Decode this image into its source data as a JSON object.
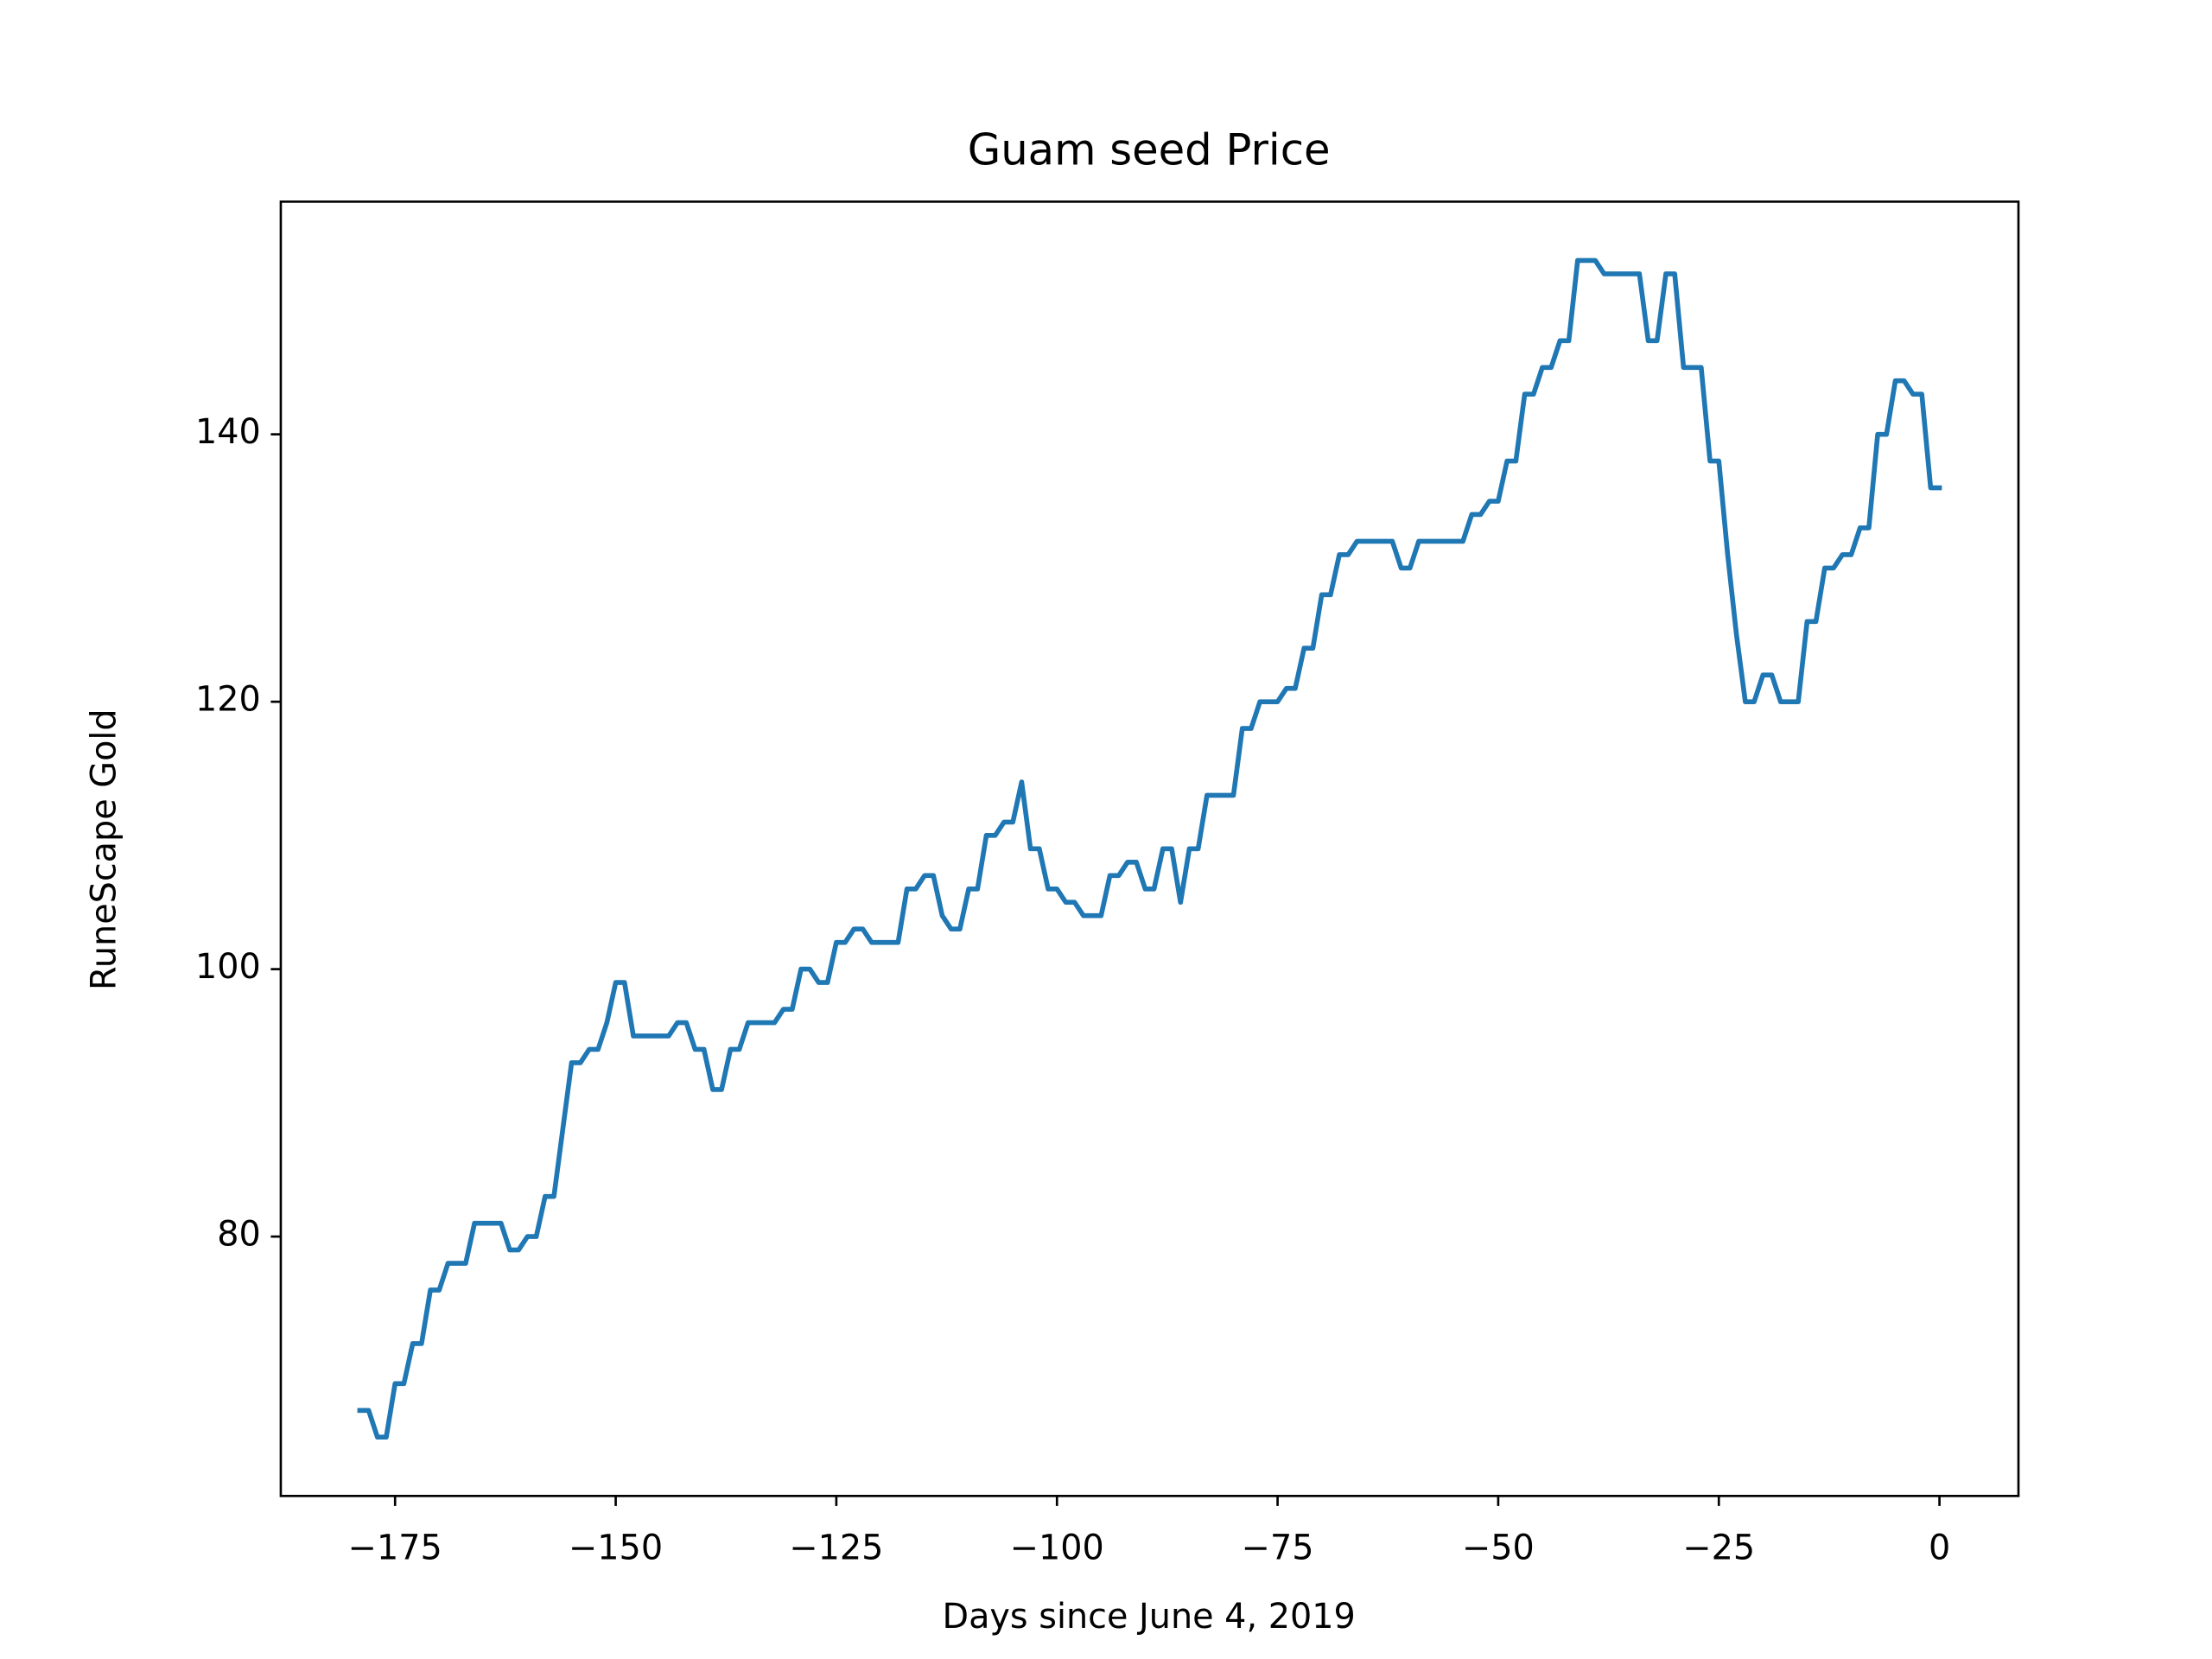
{
  "chart_data": {
    "type": "line",
    "title": "Guam seed Price",
    "xlabel": "Days since June 4, 2019",
    "ylabel": "RuneScape Gold",
    "x": [
      -179,
      -178,
      -177,
      -176,
      -175,
      -174,
      -173,
      -172,
      -171,
      -170,
      -169,
      -168,
      -167,
      -166,
      -165,
      -164,
      -163,
      -162,
      -161,
      -160,
      -159,
      -158,
      -157,
      -156,
      -155,
      -154,
      -153,
      -152,
      -151,
      -150,
      -149,
      -148,
      -147,
      -146,
      -145,
      -144,
      -143,
      -142,
      -141,
      -140,
      -139,
      -138,
      -137,
      -136,
      -135,
      -134,
      -133,
      -132,
      -131,
      -130,
      -129,
      -128,
      -127,
      -126,
      -125,
      -124,
      -123,
      -122,
      -121,
      -120,
      -119,
      -118,
      -117,
      -116,
      -115,
      -114,
      -113,
      -112,
      -111,
      -110,
      -109,
      -108,
      -107,
      -106,
      -105,
      -104,
      -103,
      -102,
      -101,
      -100,
      -99,
      -98,
      -97,
      -96,
      -95,
      -94,
      -93,
      -92,
      -91,
      -90,
      -89,
      -88,
      -87,
      -86,
      -85,
      -84,
      -83,
      -82,
      -81,
      -80,
      -79,
      -78,
      -77,
      -76,
      -75,
      -74,
      -73,
      -72,
      -71,
      -70,
      -69,
      -68,
      -67,
      -66,
      -65,
      -64,
      -63,
      -62,
      -61,
      -60,
      -59,
      -58,
      -57,
      -56,
      -55,
      -54,
      -53,
      -52,
      -51,
      -50,
      -49,
      -48,
      -47,
      -46,
      -45,
      -44,
      -43,
      -42,
      -41,
      -40,
      -39,
      -38,
      -37,
      -36,
      -35,
      -34,
      -33,
      -32,
      -31,
      -30,
      -29,
      -28,
      -27,
      -26,
      -25,
      -24,
      -23,
      -22,
      -21,
      -20,
      -19,
      -18,
      -17,
      -16,
      -15,
      -14,
      -13,
      -12,
      -11,
      -10,
      -9,
      -8,
      -7,
      -6,
      -5,
      -4,
      -3,
      -2,
      -1,
      0
    ],
    "series": [
      {
        "color": "#1f77b4",
        "values": [
          67,
          67,
          65,
          65,
          69,
          69,
          72,
          72,
          76,
          76,
          78,
          78,
          78,
          81,
          81,
          81,
          81,
          79,
          79,
          80,
          80,
          83,
          83,
          88,
          93,
          93,
          94,
          94,
          96,
          99,
          99,
          95,
          95,
          95,
          95,
          95,
          96,
          96,
          94,
          94,
          91,
          91,
          94,
          94,
          96,
          96,
          96,
          96,
          97,
          97,
          100,
          100,
          99,
          99,
          102,
          102,
          103,
          103,
          102,
          102,
          102,
          102,
          106,
          106,
          107,
          107,
          104,
          103,
          103,
          106,
          106,
          110,
          110,
          111,
          111,
          114,
          109,
          109,
          106,
          106,
          105,
          105,
          104,
          104,
          104,
          107,
          107,
          108,
          108,
          106,
          106,
          109,
          109,
          105,
          109,
          109,
          113,
          113,
          113,
          113,
          118,
          118,
          120,
          120,
          120,
          121,
          121,
          124,
          124,
          128,
          128,
          131,
          131,
          132,
          132,
          132,
          132,
          132,
          130,
          130,
          132,
          132,
          132,
          132,
          132,
          132,
          134,
          134,
          135,
          135,
          138,
          138,
          143,
          143,
          145,
          145,
          147,
          147,
          153,
          153,
          153,
          152,
          152,
          152,
          152,
          152,
          147,
          147,
          152,
          152,
          145,
          145,
          145,
          138,
          138,
          131,
          125,
          120,
          120,
          122,
          122,
          120,
          120,
          120,
          126,
          126,
          130,
          130,
          131,
          131,
          133,
          133,
          140,
          140,
          144,
          144,
          143,
          143,
          136,
          136
        ]
      }
    ],
    "xlim": [
      -187.95,
      8.95
    ],
    "ylim": [
      60.6,
      157.4
    ],
    "xticks": [
      {
        "value": -175,
        "label": "−175"
      },
      {
        "value": -150,
        "label": "−150"
      },
      {
        "value": -125,
        "label": "−125"
      },
      {
        "value": -100,
        "label": "−100"
      },
      {
        "value": -75,
        "label": "−75"
      },
      {
        "value": -50,
        "label": "−50"
      },
      {
        "value": -25,
        "label": "−25"
      },
      0
    ],
    "yticks": [
      80,
      100,
      120,
      140
    ]
  }
}
